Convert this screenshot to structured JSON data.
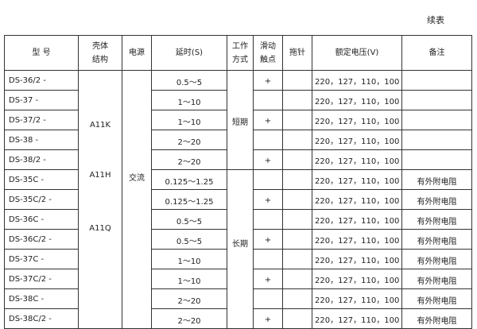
{
  "caption": "续表",
  "headers": {
    "model": "型 号",
    "housing": [
      "壳体",
      "结构"
    ],
    "power": "电源",
    "delay": "延时(S)",
    "mode": [
      "工作",
      "方式"
    ],
    "slide": [
      "滑动",
      "触点"
    ],
    "needle": "拖针",
    "voltage": "额定电压(V)",
    "remark": "备注"
  },
  "housing_labels": [
    "A11K",
    "A11H",
    "A11Q"
  ],
  "power_value": "交流",
  "modes": [
    "短期",
    "长期"
  ],
  "rows": [
    {
      "model": "DS-36/2 -",
      "delay": "0.5～5",
      "slide": "+",
      "needle": "",
      "voltage": "220，127，110，100",
      "remark": ""
    },
    {
      "model": "DS-37  -",
      "delay": "1～10",
      "slide": "",
      "needle": "",
      "voltage": "220，127，110，100",
      "remark": ""
    },
    {
      "model": "DS-37/2 -",
      "delay": "1～10",
      "slide": "+",
      "needle": "",
      "voltage": "220，127，110，100",
      "remark": ""
    },
    {
      "model": "DS-38  -",
      "delay": "2～20",
      "slide": "",
      "needle": "",
      "voltage": "220，127，110，100",
      "remark": ""
    },
    {
      "model": "DS-38/2 -",
      "delay": "2～20",
      "slide": "+",
      "needle": "",
      "voltage": "220，127，110，100",
      "remark": ""
    },
    {
      "model": "DS-35C  -",
      "delay": "0.125～1.25",
      "slide": "",
      "needle": "",
      "voltage": "220，127，110，100",
      "remark": "有外附电阻"
    },
    {
      "model": "DS-35C/2 -",
      "delay": "0.125～1.25",
      "slide": "+",
      "needle": "",
      "voltage": "220，127，110，100",
      "remark": "有外附电阻"
    },
    {
      "model": "DS-36C  -",
      "delay": "0.5～5",
      "slide": "",
      "needle": "",
      "voltage": "220，127，110，100",
      "remark": "有外附电阻"
    },
    {
      "model": "DS-36C/2 -",
      "delay": "0.5～5",
      "slide": "+",
      "needle": "",
      "voltage": "220，127，110，100",
      "remark": "有外附电阻"
    },
    {
      "model": "DS-37C  -",
      "delay": "1～10",
      "slide": "",
      "needle": "",
      "voltage": "220，127，110，100",
      "remark": "有外附电阻"
    },
    {
      "model": "DS-37C/2 -",
      "delay": "1～10",
      "slide": "+",
      "needle": "",
      "voltage": "220，127，110，100",
      "remark": "有外附电阻"
    },
    {
      "model": "DS-38C  -",
      "delay": "2～20",
      "slide": "",
      "needle": "",
      "voltage": "220，127，110，100",
      "remark": "有外附电阻"
    },
    {
      "model": "DS-38C/2  -",
      "delay": "2～20",
      "slide": "+",
      "needle": "",
      "voltage": "220，127，110，100",
      "remark": "有外附电阻"
    }
  ]
}
